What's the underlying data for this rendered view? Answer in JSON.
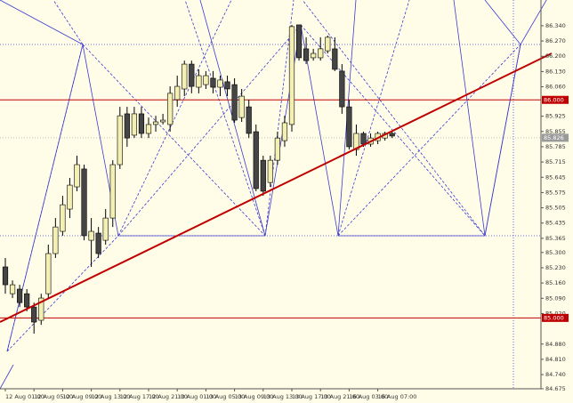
{
  "chart_data": {
    "type": "candlestick",
    "categories": [
      "12 Aug 01:00",
      null,
      null,
      null,
      "12 Aug 05:00",
      null,
      null,
      null,
      "12 Aug 09:00",
      null,
      null,
      null,
      "12 Aug 13:00",
      null,
      null,
      null,
      "12 Aug 17:00",
      null,
      null,
      null,
      "12 Aug 21:00",
      null,
      null,
      null,
      "13 Aug 01:00",
      null,
      null,
      null,
      "13 Aug 05:00",
      null,
      null,
      null,
      "13 Aug 09:00",
      null,
      null,
      null,
      "13 Aug 13:00",
      null,
      null,
      null,
      "13 Aug 17:00",
      null,
      null,
      null,
      "13 Aug 21:00",
      null,
      null,
      null,
      "16 Aug 03:00",
      null,
      null,
      null,
      "16 Aug 07:00",
      null,
      null
    ],
    "open": [
      85.234,
      85.111,
      85.132,
      85.111,
      85.05,
      84.989,
      85.111,
      85.295,
      85.397,
      85.499,
      85.601,
      85.683,
      85.356,
      85.389,
      85.356,
      85.458,
      85.703,
      85.936,
      85.838,
      85.936,
      85.846,
      85.887,
      85.899,
      85.887,
      86.001,
      86.05,
      86.164,
      86.058,
      86.07,
      86.099,
      86.058,
      86.083,
      86.07,
      85.919,
      85.968,
      85.854,
      85.723,
      85.621,
      85.723,
      85.813,
      85.887,
      86.344,
      86.234,
      86.193,
      86.193,
      86.225,
      86.234,
      86.132,
      85.968,
      85.772,
      85.846,
      85.797,
      85.813,
      85.825,
      85.846
    ],
    "high": [
      85.275,
      85.172,
      85.152,
      85.132,
      85.07,
      85.111,
      85.336,
      85.458,
      85.56,
      85.642,
      85.744,
      85.703,
      85.458,
      85.417,
      85.499,
      85.723,
      85.968,
      85.968,
      85.968,
      85.968,
      85.919,
      85.927,
      85.936,
      86.062,
      86.111,
      86.18,
      86.18,
      86.14,
      86.132,
      86.132,
      86.111,
      86.111,
      86.099,
      86.05,
      86.001,
      85.887,
      85.744,
      85.744,
      85.854,
      85.927,
      86.344,
      86.344,
      86.287,
      86.234,
      86.287,
      86.295,
      86.287,
      86.164,
      86.001,
      85.887,
      85.854,
      85.846,
      85.854,
      85.854,
      85.854
    ],
    "low": [
      85.111,
      85.091,
      85.05,
      85.03,
      84.928,
      84.968,
      85.091,
      85.275,
      85.377,
      85.458,
      85.581,
      85.356,
      85.234,
      85.275,
      85.336,
      85.417,
      85.683,
      85.785,
      85.825,
      85.825,
      85.825,
      85.854,
      85.887,
      85.854,
      85.968,
      86.017,
      86.03,
      86.03,
      86.05,
      86.03,
      86.017,
      86.017,
      85.895,
      85.899,
      85.825,
      85.581,
      85.56,
      85.601,
      85.703,
      85.785,
      85.854,
      86.18,
      86.164,
      86.18,
      86.18,
      86.213,
      86.132,
      85.936,
      85.772,
      85.744,
      85.785,
      85.785,
      85.797,
      85.813,
      85.825
    ],
    "close": [
      85.152,
      85.152,
      85.07,
      85.05,
      84.981,
      85.091,
      85.295,
      85.417,
      85.519,
      85.609,
      85.703,
      85.377,
      85.397,
      85.295,
      85.458,
      85.703,
      85.927,
      85.825,
      85.936,
      85.846,
      85.887,
      85.899,
      85.907,
      86.03,
      86.062,
      86.164,
      86.062,
      86.111,
      86.111,
      86.058,
      86.091,
      86.05,
      85.907,
      86.017,
      85.846,
      85.593,
      85.581,
      85.723,
      85.825,
      85.895,
      86.336,
      86.193,
      86.18,
      86.213,
      86.234,
      86.287,
      86.14,
      85.968,
      85.785,
      85.846,
      85.797,
      85.825,
      85.846,
      85.846,
      85.834
    ],
    "up_color": "#f4efb2",
    "down_color": "#454545",
    "ylim": [
      84.675,
      86.458
    ],
    "yticks": [
      {
        "value": 86.34,
        "label": "86.340"
      },
      {
        "value": 86.27,
        "label": "86.270"
      },
      {
        "value": 86.2,
        "label": "86.200"
      },
      {
        "value": 86.13,
        "label": "86.130"
      },
      {
        "value": 86.06,
        "label": "86.060"
      },
      {
        "value": 85.925,
        "label": "85.925"
      },
      {
        "value": 85.855,
        "label": "85.855"
      },
      {
        "value": 85.785,
        "label": "85.785"
      },
      {
        "value": 85.715,
        "label": "85.715"
      },
      {
        "value": 85.645,
        "label": "85.645"
      },
      {
        "value": 85.575,
        "label": "85.575"
      },
      {
        "value": 85.505,
        "label": "85.505"
      },
      {
        "value": 85.435,
        "label": "85.435"
      },
      {
        "value": 85.365,
        "label": "85.365"
      },
      {
        "value": 85.3,
        "label": "85.300"
      },
      {
        "value": 85.23,
        "label": "85.230"
      },
      {
        "value": 85.16,
        "label": "85.160"
      },
      {
        "value": 85.09,
        "label": "85.090"
      },
      {
        "value": 85.02,
        "label": "85.020"
      },
      {
        "value": 84.88,
        "label": "84.880"
      },
      {
        "value": 84.81,
        "label": "84.810"
      },
      {
        "value": 84.74,
        "label": "84.740"
      },
      {
        "value": 84.675,
        "label": "84.675"
      }
    ],
    "hlines": [
      {
        "value": 86.0,
        "label": "86.000",
        "color": "#c00000"
      },
      {
        "value": 85.0,
        "label": "85.000",
        "color": "#c00000"
      }
    ],
    "price": {
      "value": 85.826,
      "label": "85.826",
      "color": "#9a9a9a"
    }
  }
}
